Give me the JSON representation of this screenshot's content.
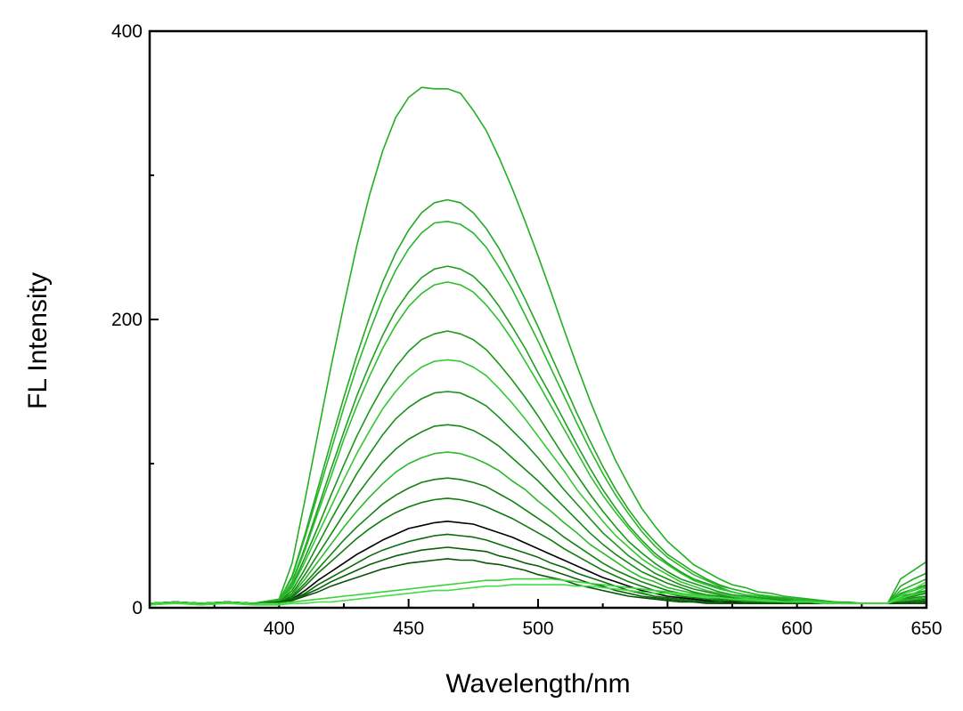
{
  "chart_data": {
    "type": "line",
    "xlabel": "Wavelength/nm",
    "ylabel": "FL Intensity",
    "xlim": [
      350,
      650
    ],
    "ylim": [
      0,
      400
    ],
    "x_ticks": [
      400,
      450,
      500,
      550,
      600,
      650
    ],
    "y_ticks": [
      0,
      200,
      400
    ],
    "grid": false,
    "legend": "none",
    "x": [
      350,
      360,
      370,
      380,
      390,
      400,
      405,
      410,
      415,
      420,
      425,
      430,
      435,
      440,
      445,
      450,
      455,
      460,
      465,
      470,
      475,
      480,
      485,
      490,
      495,
      500,
      505,
      510,
      515,
      520,
      525,
      530,
      535,
      540,
      545,
      550,
      555,
      560,
      565,
      570,
      575,
      580,
      585,
      590,
      595,
      600,
      605,
      610,
      615,
      620,
      625,
      630,
      635,
      640,
      645,
      650
    ],
    "series": [
      {
        "color": "#22b022",
        "values": [
          3,
          4,
          3,
          4,
          3,
          6,
          31,
          75,
          121,
          167,
          210,
          251,
          287,
          317,
          340,
          354,
          361,
          360,
          360,
          357,
          345,
          331,
          312,
          291,
          268,
          244,
          219,
          193,
          168,
          144,
          122,
          102,
          85,
          69,
          57,
          46,
          38,
          30,
          25,
          20,
          16,
          14,
          11,
          10,
          8,
          7,
          6,
          5,
          4,
          4,
          3,
          3,
          3,
          20,
          26,
          32
        ]
      },
      {
        "color": "#22a822",
        "values": [
          3,
          4,
          3,
          4,
          3,
          5,
          22,
          51,
          83,
          115,
          146,
          175,
          202,
          226,
          246,
          262,
          274,
          281,
          283,
          281,
          274,
          263,
          249,
          232,
          214,
          195,
          175,
          155,
          135,
          116,
          98,
          82,
          68,
          56,
          46,
          37,
          31,
          25,
          20,
          16,
          13,
          11,
          9,
          8,
          7,
          6,
          5,
          4,
          4,
          3,
          3,
          3,
          3,
          15,
          20,
          24
        ]
      },
      {
        "color": "#27b827",
        "values": [
          3,
          4,
          3,
          4,
          3,
          5,
          21,
          49,
          79,
          109,
          139,
          167,
          192,
          215,
          234,
          249,
          260,
          267,
          268,
          266,
          260,
          250,
          236,
          221,
          203,
          185,
          166,
          147,
          128,
          110,
          93,
          78,
          65,
          53,
          43,
          35,
          29,
          23,
          19,
          15,
          13,
          11,
          9,
          8,
          6,
          6,
          5,
          4,
          4,
          3,
          3,
          3,
          3,
          12,
          16,
          20
        ]
      },
      {
        "color": "#1fa01f",
        "values": [
          3,
          4,
          3,
          4,
          3,
          4,
          18,
          42,
          69,
          96,
          122,
          147,
          169,
          189,
          206,
          219,
          229,
          235,
          237,
          235,
          230,
          221,
          209,
          195,
          180,
          163,
          147,
          130,
          113,
          97,
          82,
          69,
          57,
          47,
          38,
          31,
          25,
          20,
          17,
          14,
          11,
          9,
          8,
          7,
          6,
          5,
          4,
          4,
          3,
          3,
          3,
          3,
          3,
          10,
          13,
          16
        ]
      },
      {
        "color": "#2cc02c",
        "values": [
          3,
          4,
          3,
          4,
          3,
          4,
          17,
          40,
          66,
          91,
          117,
          140,
          161,
          180,
          196,
          209,
          218,
          224,
          226,
          224,
          219,
          210,
          199,
          186,
          171,
          156,
          140,
          124,
          108,
          92,
          78,
          66,
          55,
          45,
          36,
          30,
          24,
          19,
          16,
          13,
          11,
          9,
          8,
          6,
          5,
          5,
          4,
          4,
          3,
          3,
          3,
          3,
          3,
          9,
          12,
          15
        ]
      },
      {
        "color": "#1a981a",
        "values": [
          3,
          4,
          3,
          4,
          3,
          4,
          15,
          35,
          56,
          78,
          99,
          119,
          137,
          153,
          167,
          178,
          186,
          190,
          192,
          190,
          186,
          179,
          169,
          158,
          146,
          133,
          119,
          105,
          92,
          79,
          67,
          56,
          46,
          38,
          31,
          25,
          20,
          17,
          14,
          11,
          9,
          8,
          7,
          6,
          5,
          4,
          4,
          3,
          3,
          3,
          3,
          3,
          3,
          8,
          10,
          12
        ]
      },
      {
        "color": "#33c833",
        "values": [
          3,
          4,
          3,
          4,
          3,
          4,
          14,
          32,
          51,
          70,
          89,
          107,
          123,
          138,
          150,
          160,
          167,
          171,
          172,
          171,
          167,
          161,
          152,
          142,
          131,
          119,
          107,
          95,
          82,
          71,
          60,
          50,
          42,
          34,
          28,
          23,
          18,
          15,
          12,
          10,
          8,
          7,
          6,
          5,
          4,
          4,
          3,
          3,
          3,
          3,
          3,
          3,
          3,
          7,
          9,
          11
        ]
      },
      {
        "color": "#189018",
        "values": [
          3,
          4,
          3,
          4,
          3,
          4,
          12,
          27,
          44,
          61,
          77,
          93,
          107,
          120,
          131,
          139,
          145,
          149,
          150,
          149,
          145,
          140,
          132,
          123,
          114,
          104,
          93,
          82,
          72,
          62,
          52,
          44,
          36,
          30,
          24,
          20,
          16,
          13,
          11,
          9,
          7,
          6,
          5,
          5,
          4,
          4,
          3,
          3,
          3,
          3,
          3,
          3,
          3,
          6,
          8,
          10
        ]
      },
      {
        "color": "#158a15",
        "values": [
          3,
          4,
          3,
          4,
          3,
          4,
          10,
          23,
          37,
          51,
          65,
          78,
          90,
          101,
          110,
          117,
          122,
          126,
          127,
          126,
          123,
          118,
          112,
          104,
          96,
          88,
          79,
          70,
          61,
          52,
          44,
          37,
          31,
          25,
          21,
          17,
          14,
          11,
          9,
          8,
          6,
          5,
          5,
          4,
          4,
          3,
          3,
          3,
          3,
          3,
          3,
          3,
          3,
          5,
          7,
          8
        ]
      },
      {
        "color": "#2bb82b",
        "values": [
          3,
          4,
          3,
          4,
          3,
          4,
          9,
          20,
          32,
          44,
          56,
          67,
          77,
          86,
          94,
          100,
          104,
          107,
          108,
          107,
          104,
          100,
          95,
          88,
          82,
          74,
          67,
          59,
          52,
          44,
          38,
          32,
          26,
          21,
          18,
          14,
          12,
          10,
          8,
          7,
          6,
          5,
          4,
          4,
          3,
          3,
          3,
          3,
          3,
          3,
          3,
          3,
          3,
          5,
          6,
          7
        ]
      },
      {
        "color": "#128212",
        "values": [
          3,
          4,
          3,
          4,
          3,
          4,
          8,
          17,
          27,
          37,
          47,
          56,
          64,
          72,
          78,
          83,
          87,
          89,
          90,
          89,
          87,
          84,
          79,
          74,
          68,
          62,
          56,
          49,
          43,
          37,
          31,
          26,
          22,
          18,
          15,
          12,
          10,
          8,
          7,
          6,
          5,
          4,
          4,
          3,
          3,
          3,
          3,
          3,
          3,
          3,
          3,
          3,
          3,
          4,
          5,
          6
        ]
      },
      {
        "color": "#107a10",
        "values": [
          3,
          4,
          3,
          4,
          3,
          4,
          7,
          15,
          24,
          32,
          40,
          48,
          55,
          61,
          66,
          70,
          73,
          75,
          76,
          75,
          73,
          70,
          66,
          62,
          57,
          52,
          47,
          41,
          36,
          31,
          26,
          22,
          18,
          15,
          12,
          10,
          8,
          7,
          6,
          5,
          4,
          4,
          3,
          3,
          3,
          3,
          3,
          3,
          3,
          3,
          3,
          3,
          3,
          4,
          4,
          5
        ]
      },
      {
        "color": "#000000",
        "values": [
          3,
          4,
          3,
          4,
          3,
          4,
          6,
          12,
          19,
          25,
          31,
          37,
          42,
          47,
          51,
          55,
          57,
          59,
          60,
          59,
          58,
          55,
          52,
          49,
          45,
          41,
          37,
          33,
          29,
          25,
          21,
          18,
          15,
          12,
          10,
          8,
          7,
          6,
          5,
          4,
          4,
          3,
          3,
          3,
          3,
          3,
          3,
          3,
          3,
          3,
          3,
          3,
          3,
          3,
          4,
          4
        ]
      },
      {
        "color": "#0c6b0c",
        "values": [
          3,
          4,
          3,
          4,
          3,
          4,
          6,
          10,
          16,
          21,
          26,
          31,
          36,
          40,
          43,
          46,
          48,
          50,
          51,
          50,
          49,
          47,
          44,
          41,
          38,
          35,
          31,
          28,
          24,
          21,
          18,
          15,
          12,
          10,
          8,
          7,
          6,
          5,
          4,
          4,
          3,
          3,
          3,
          3,
          3,
          3,
          3,
          3,
          3,
          3,
          3,
          3,
          3,
          3,
          4,
          4
        ]
      },
      {
        "color": "#0a5e0a",
        "values": [
          3,
          4,
          3,
          4,
          3,
          4,
          5,
          9,
          13,
          18,
          22,
          26,
          30,
          33,
          36,
          38,
          40,
          41,
          42,
          41,
          40,
          39,
          36,
          34,
          31,
          29,
          26,
          23,
          20,
          17,
          15,
          12,
          10,
          8,
          7,
          6,
          5,
          4,
          4,
          3,
          3,
          3,
          3,
          3,
          3,
          3,
          3,
          3,
          3,
          3,
          3,
          3,
          3,
          3,
          3,
          3
        ]
      },
      {
        "color": "#085408",
        "values": [
          3,
          4,
          3,
          4,
          3,
          4,
          5,
          8,
          11,
          15,
          18,
          21,
          24,
          27,
          29,
          31,
          32,
          33,
          34,
          33,
          33,
          31,
          30,
          28,
          26,
          23,
          21,
          19,
          16,
          14,
          12,
          10,
          8,
          7,
          6,
          5,
          4,
          4,
          3,
          3,
          3,
          3,
          3,
          3,
          3,
          3,
          3,
          3,
          3,
          3,
          3,
          3,
          3,
          3,
          3,
          3
        ]
      },
      {
        "color": "#3ad43a",
        "values": [
          3,
          4,
          3,
          4,
          3,
          3,
          4,
          5,
          6,
          7,
          8,
          9,
          10,
          11,
          12,
          13,
          14,
          15,
          16,
          17,
          18,
          19,
          19,
          20,
          20,
          20,
          20,
          19,
          18,
          17,
          16,
          15,
          14,
          13,
          12,
          11,
          10,
          9,
          8,
          7,
          6,
          6,
          5,
          5,
          4,
          4,
          4,
          4,
          3,
          3,
          3,
          3,
          3,
          6,
          10,
          14
        ]
      },
      {
        "color": "#44dd44",
        "values": [
          2,
          3,
          2,
          3,
          2,
          2,
          3,
          3,
          4,
          4,
          5,
          6,
          7,
          8,
          9,
          10,
          11,
          12,
          12,
          13,
          14,
          15,
          15,
          16,
          16,
          16,
          16,
          16,
          15,
          15,
          14,
          13,
          12,
          11,
          10,
          10,
          9,
          8,
          7,
          7,
          6,
          6,
          5,
          5,
          4,
          4,
          4,
          3,
          3,
          3,
          3,
          3,
          3,
          8,
          13,
          18
        ]
      }
    ]
  }
}
